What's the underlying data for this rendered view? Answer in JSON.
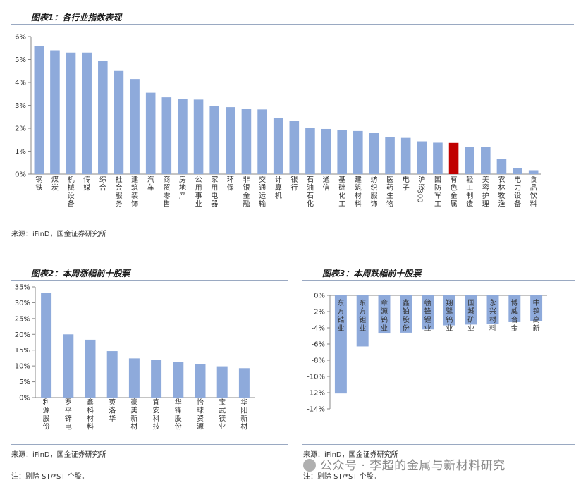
{
  "figure1": {
    "title": "图表1：各行业指数表现",
    "source": "来源：iFinD，国金证券研究所",
    "chart_data": {
      "type": "bar",
      "categories": [
        "钢铁",
        "煤炭",
        "机械设备",
        "传媒",
        "综合",
        "社会服务",
        "建筑装饰",
        "汽车",
        "商贸零售",
        "房地产",
        "公用事业",
        "家用电器",
        "环保",
        "非银金融",
        "交通运输",
        "计算机",
        "银行",
        "石油石化",
        "通信",
        "基础化工",
        "建筑材料",
        "纺织服饰",
        "医药生物",
        "电子",
        "沪深300",
        "国防军工",
        "有色金属",
        "轻工制造",
        "美容护理",
        "农林牧渔",
        "电力设备",
        "食品饮料"
      ],
      "values": [
        5.6,
        5.4,
        5.3,
        5.3,
        4.95,
        4.5,
        4.15,
        3.55,
        3.35,
        3.27,
        3.25,
        2.97,
        2.92,
        2.85,
        2.82,
        2.45,
        2.33,
        2.0,
        1.97,
        1.93,
        1.88,
        1.8,
        1.6,
        1.58,
        1.43,
        1.37,
        1.36,
        1.2,
        1.18,
        0.65,
        0.27,
        0.17
      ],
      "highlight": "有色金属",
      "yticks": [
        "0%",
        "1%",
        "2%",
        "3%",
        "4%",
        "5%",
        "6%"
      ],
      "ylim": [
        0,
        6
      ],
      "bar_color": "#8eaadb",
      "highlight_color": "#c00000"
    }
  },
  "figure2": {
    "title": "图表2：本周涨幅前十股票",
    "source": "来源：iFinD，国金证券研究所",
    "note": "注：剔除 ST/*ST 个股。",
    "chart_data": {
      "type": "bar",
      "categories": [
        "利源股份",
        "罗平锌电",
        "鑫科材料",
        "英洛华",
        "豪美新材",
        "宜安科技",
        "华锋股份",
        "怡球资源",
        "宝武镁业",
        "华阳新材"
      ],
      "values": [
        33.2,
        20.0,
        18.3,
        14.7,
        12.4,
        11.9,
        11.2,
        10.5,
        9.9,
        9.3
      ],
      "yticks": [
        "0%",
        "5%",
        "10%",
        "15%",
        "20%",
        "25%",
        "30%",
        "35%"
      ],
      "ylim": [
        0,
        35
      ],
      "bar_color": "#8eaadb"
    }
  },
  "figure3": {
    "title": "图表3：本周跌幅前十股票",
    "source": "来源：iFinD，国金证券研究所",
    "note": "注：剔除 ST/*ST 个股。",
    "chart_data": {
      "type": "bar",
      "categories": [
        "东方锆业",
        "东方钽业",
        "章源钨业",
        "鑫铂股份",
        "赣锋锂业",
        "翔鹭钨业",
        "国城矿业",
        "永兴材料",
        "博威合金",
        "中钨高新"
      ],
      "values": [
        -12.1,
        -6.3,
        -4.7,
        -4.6,
        -4.2,
        -3.7,
        -3.6,
        -3.5,
        -3.3,
        -3.2
      ],
      "yticks": [
        "0%",
        "-2%",
        "-4%",
        "-6%",
        "-8%",
        "-10%",
        "-12%",
        "-14%"
      ],
      "ylim": [
        -14,
        0
      ],
      "bar_color": "#8eaadb"
    }
  },
  "watermark": "公众号 · 李超的金属与新材料研究"
}
